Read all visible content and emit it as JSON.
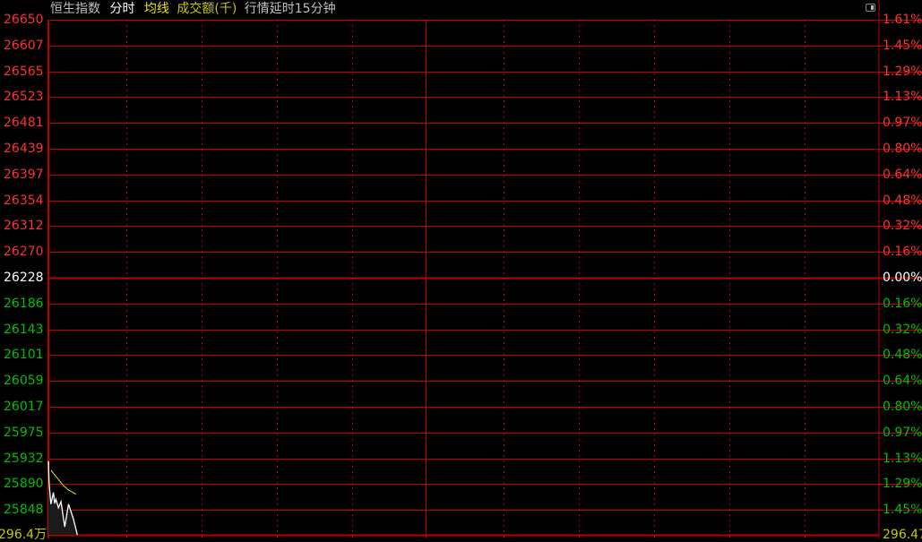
{
  "header": {
    "name": "恒生指数",
    "mode": "分时",
    "avg_label": "均线",
    "volume_label": "成交额(千)",
    "delay_note": "行情延时15分钟"
  },
  "colors": {
    "up": "#ff3030",
    "down": "#00c000",
    "neutral": "#ffffff",
    "grid": "#c00000",
    "price_line": "#ffffff",
    "avg_line": "#e6e600",
    "volume_label": "#c8c800"
  },
  "chart_data": {
    "type": "line",
    "prev_close": 26228,
    "ylim": [
      25806,
      26650
    ],
    "price_ticks": [
      "26650",
      "26607",
      "26565",
      "26523",
      "26481",
      "26439",
      "26397",
      "26354",
      "26312",
      "26270",
      "26228",
      "26186",
      "26143",
      "26101",
      "26059",
      "26017",
      "25975",
      "25932",
      "25890",
      "25848"
    ],
    "pct_ticks": [
      "1.61%",
      "1.45%",
      "1.29%",
      "1.13%",
      "0.97%",
      "0.80%",
      "0.64%",
      "0.48%",
      "0.32%",
      "0.16%",
      "0.00%",
      "0.16%",
      "0.32%",
      "0.48%",
      "0.64%",
      "0.80%",
      "0.97%",
      "1.13%",
      "1.29%",
      "1.45%"
    ],
    "session_minutes": 330,
    "series": [
      {
        "key": "price",
        "x": [
          0,
          0.3,
          1,
          2,
          2.5,
          3,
          4,
          5,
          6.5,
          8,
          10,
          11.5
        ],
        "values": [
          25928,
          25891,
          25858,
          25877,
          25859,
          25866,
          25852,
          25862,
          25821,
          25858,
          25833,
          25808
        ]
      },
      {
        "key": "avg",
        "x": [
          1,
          3,
          6,
          8,
          11
        ],
        "values": [
          25913,
          25903,
          25888,
          25881,
          25874
        ]
      }
    ],
    "volume_left": "296.4万",
    "volume_right": "296.47"
  }
}
